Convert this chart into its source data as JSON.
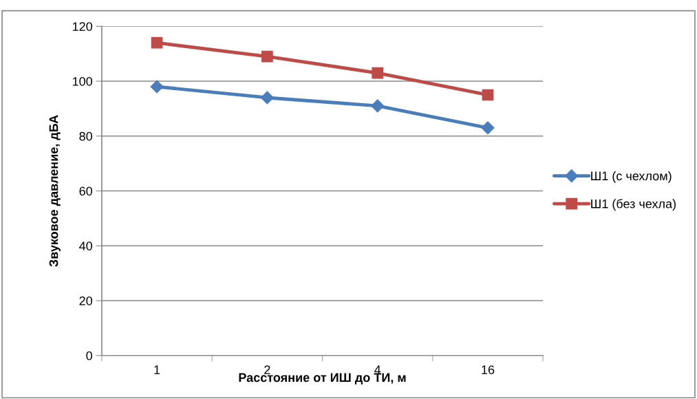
{
  "chart_data": {
    "type": "line",
    "xlabel": "Расстояние от ИШ до ТИ, м",
    "ylabel": "Звуковое давление, дБА",
    "categories": [
      "1",
      "2",
      "4",
      "16"
    ],
    "series": [
      {
        "name": "Ш1 (с чехлом)",
        "color": "#4a7ebb",
        "marker": "diamond",
        "values": [
          98,
          94,
          91,
          83
        ]
      },
      {
        "name": "Ш1 (без чехла)",
        "color": "#be4b48",
        "marker": "square",
        "values": [
          114,
          109,
          103,
          95
        ]
      }
    ],
    "ylim": [
      0,
      120
    ],
    "yticks": [
      0,
      20,
      40,
      60,
      80,
      100,
      120
    ],
    "grid": "y",
    "legend": "right",
    "line_style": "solid"
  }
}
